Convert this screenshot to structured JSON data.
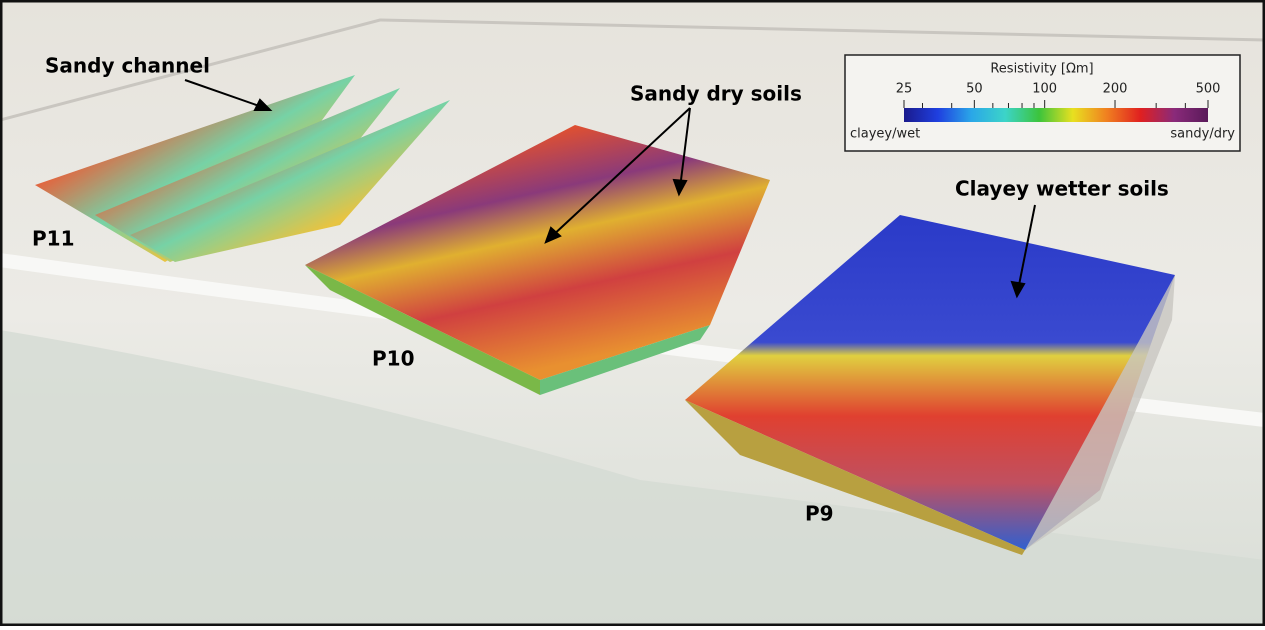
{
  "labels": {
    "sandy_channel": "Sandy channel",
    "sandy_dry": "Sandy dry soils",
    "clayey_wet": "Clayey wetter soils",
    "p11": "P11",
    "p10": "P10",
    "p9": "P9"
  },
  "colorbar": {
    "title": "Resistivity [Ωm]",
    "scale": "log",
    "lim": [
      25,
      500
    ],
    "ticks": [
      25,
      50,
      100,
      200,
      500
    ],
    "minor_ticks": [
      30,
      40,
      60,
      70,
      80,
      90,
      300,
      400
    ],
    "low_label": "clayey/wet",
    "high_label": "sandy/dry",
    "colors": [
      "#1a1a8c",
      "#1f3fe0",
      "#2aa7e8",
      "#3cd4c8",
      "#3cc43c",
      "#e8e020",
      "#f08020",
      "#e02020",
      "#8a2a7a",
      "#5a1a5a"
    ]
  }
}
